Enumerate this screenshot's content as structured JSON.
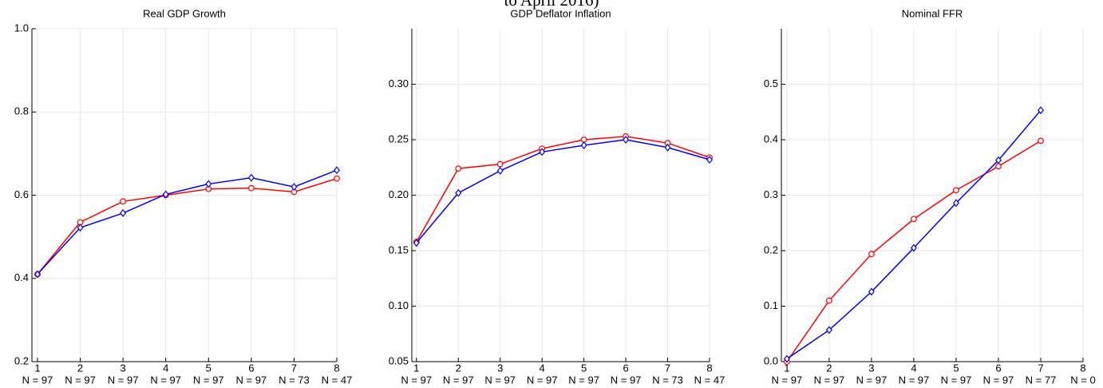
{
  "title": "to April 2016)",
  "chart_data": [
    {
      "type": "line",
      "title": "Real GDP Growth",
      "x": [
        1,
        2,
        3,
        4,
        5,
        6,
        7,
        8
      ],
      "series": [
        {
          "color": "#ff0000",
          "marker": "circle",
          "values": [
            0.41,
            0.535,
            0.585,
            0.6,
            0.615,
            0.617,
            0.608,
            0.64
          ]
        },
        {
          "color": "#0000ff",
          "marker": "diamond",
          "values": [
            0.41,
            0.522,
            0.557,
            0.602,
            0.627,
            0.642,
            0.62,
            0.66
          ]
        }
      ],
      "xlim": [
        0.87,
        8
      ],
      "xticks": [
        1,
        2,
        3,
        4,
        5,
        6,
        7,
        8
      ],
      "xtick_notes": [
        "N = 97",
        "N = 97",
        "N = 97",
        "N = 97",
        "N = 97",
        "N = 97",
        "N = 73",
        "N = 47"
      ],
      "ylim": [
        0.2,
        1.0
      ],
      "yticks": [
        0.2,
        0.4,
        0.6,
        0.8,
        {
          "value": 1,
          "label": "1.0"
        }
      ],
      "grid": true
    },
    {
      "type": "line",
      "title": "GDP Deflator Inflation",
      "x": [
        1,
        2,
        3,
        4,
        5,
        6,
        7,
        8
      ],
      "series": [
        {
          "color": "#ff0000",
          "marker": "circle",
          "values": [
            0.158,
            0.224,
            0.228,
            0.242,
            0.25,
            0.253,
            0.247,
            0.234
          ]
        },
        {
          "color": "#0000ff",
          "marker": "diamond",
          "values": [
            0.157,
            0.202,
            0.222,
            0.239,
            0.245,
            0.25,
            0.243,
            0.232
          ]
        }
      ],
      "xlim": [
        0.89,
        8
      ],
      "xticks": [
        1,
        2,
        3,
        4,
        5,
        6,
        7,
        8
      ],
      "xtick_notes": [
        "N = 97",
        "N = 97",
        "N = 97",
        "N = 97",
        "N = 97",
        "N = 97",
        "N = 73",
        "N = 47"
      ],
      "ylim": [
        0.05,
        0.35
      ],
      "yticks": [
        0.05,
        {
          "value": 0.1,
          "label": "0.10"
        },
        0.15,
        {
          "value": 0.2,
          "label": "0.20"
        },
        0.25,
        {
          "value": 0.3,
          "label": "0.30"
        }
      ],
      "grid": true
    },
    {
      "type": "line",
      "title": "Nominal FFR",
      "x": [
        1,
        2,
        3,
        4,
        5,
        6,
        7,
        8
      ],
      "series": [
        {
          "color": "#ff0000",
          "marker": "circle",
          "values": [
            0.0,
            0.11,
            0.194,
            0.257,
            0.309,
            0.352,
            0.398,
            null
          ]
        },
        {
          "color": "#0000ff",
          "marker": "diamond",
          "values": [
            0.005,
            0.057,
            0.126,
            0.205,
            0.286,
            0.363,
            0.453,
            null
          ]
        }
      ],
      "xlim": [
        0.87,
        8
      ],
      "xticks": [
        1,
        2,
        3,
        4,
        5,
        6,
        7,
        8
      ],
      "xtick_notes": [
        "N = 97",
        "N = 97",
        "N = 97",
        "N = 97",
        "N = 97",
        "N = 97",
        "N = 77",
        "N = 0"
      ],
      "ylim": [
        0,
        0.6
      ],
      "yticks": [
        {
          "value": 0,
          "label": "0.0"
        },
        0.1,
        0.2,
        0.3,
        0.4,
        0.5
      ],
      "grid": true
    }
  ]
}
